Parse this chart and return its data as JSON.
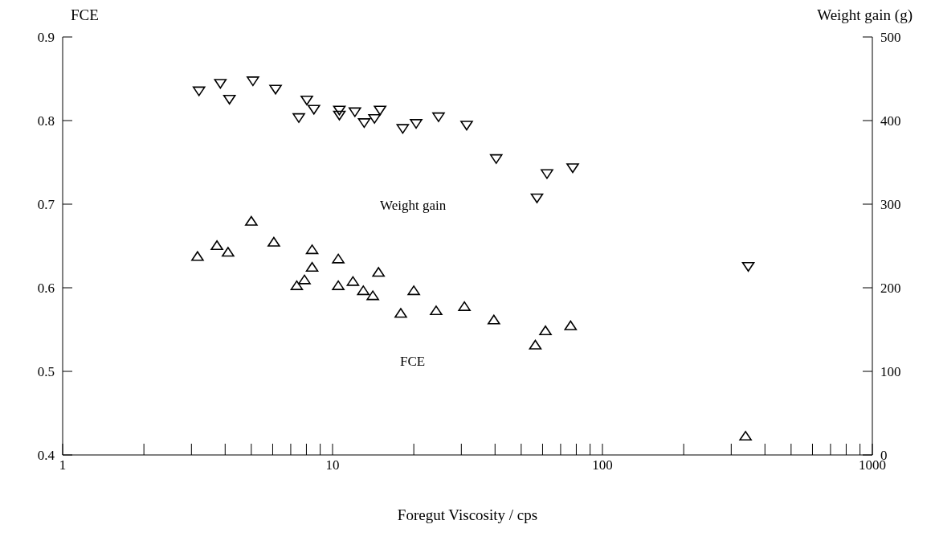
{
  "chart_data": {
    "type": "scatter",
    "xlabel": "Foregut Viscosity / cps",
    "ylabel": "FCE",
    "y2label": "Weight gain (g)",
    "log": "x",
    "grid": false,
    "legend": false,
    "marker": "triangle",
    "xlim": [
      1,
      1000
    ],
    "xticks": [
      1,
      {
        "value": 2,
        "label": null
      },
      {
        "value": 3,
        "label": null
      },
      {
        "value": 4,
        "label": null
      },
      {
        "value": 5,
        "label": null
      },
      {
        "value": 6,
        "label": null
      },
      {
        "value": 7,
        "label": null
      },
      {
        "value": 8,
        "label": null
      },
      {
        "value": 9,
        "label": null
      },
      10,
      {
        "value": 20,
        "label": null
      },
      {
        "value": 30,
        "label": null
      },
      {
        "value": 40,
        "label": null
      },
      {
        "value": 50,
        "label": null
      },
      {
        "value": 60,
        "label": null
      },
      {
        "value": 70,
        "label": null
      },
      {
        "value": 80,
        "label": null
      },
      {
        "value": 90,
        "label": null
      },
      100,
      {
        "value": 200,
        "label": null
      },
      {
        "value": 300,
        "label": null
      },
      {
        "value": 400,
        "label": null
      },
      {
        "value": 500,
        "label": null
      },
      {
        "value": 600,
        "label": null
      },
      {
        "value": 700,
        "label": null
      },
      {
        "value": 800,
        "label": null
      },
      {
        "value": 900,
        "label": null
      },
      1000
    ],
    "ylim": [
      0.4,
      0.9
    ],
    "yticks": [
      0.4,
      0.5,
      0.6,
      0.7,
      0.8,
      0.9
    ],
    "y2lim": [
      0,
      500
    ],
    "y2ticks": [
      0,
      100,
      200,
      300,
      400,
      500
    ],
    "annotations": [
      "Weight gain",
      "FCE"
    ],
    "series": [
      {
        "color": "#000000",
        "axis": "y2",
        "x": [
          3.2,
          3.84,
          4.15,
          5.07,
          6.15,
          7.5,
          8.03,
          8.53,
          10.6,
          10.6,
          12.1,
          13.1,
          14.3,
          15.0,
          18.2,
          20.4,
          24.7,
          31.4,
          40.4,
          57.2,
          62.3,
          77.6,
          347
        ],
        "values": [
          436,
          445,
          426,
          448,
          438,
          404,
          425,
          414,
          413,
          407,
          411,
          398,
          403,
          413,
          391,
          397,
          405,
          395,
          355,
          308,
          337,
          344,
          226
        ]
      },
      {
        "color": "#000000",
        "axis": "y",
        "x": [
          3.16,
          3.73,
          4.1,
          5.0,
          6.06,
          7.37,
          7.87,
          8.4,
          8.4,
          10.5,
          10.5,
          11.9,
          13.0,
          14.1,
          14.8,
          17.9,
          20.0,
          24.2,
          30.8,
          39.6,
          56.4,
          61.5,
          76.2,
          339
        ],
        "values": [
          0.637,
          0.65,
          0.642,
          0.679,
          0.654,
          0.602,
          0.609,
          0.624,
          0.645,
          0.634,
          0.602,
          0.607,
          0.596,
          0.59,
          0.618,
          0.569,
          0.596,
          0.572,
          0.577,
          0.561,
          0.531,
          0.548,
          0.554,
          0.422
        ]
      }
    ]
  }
}
